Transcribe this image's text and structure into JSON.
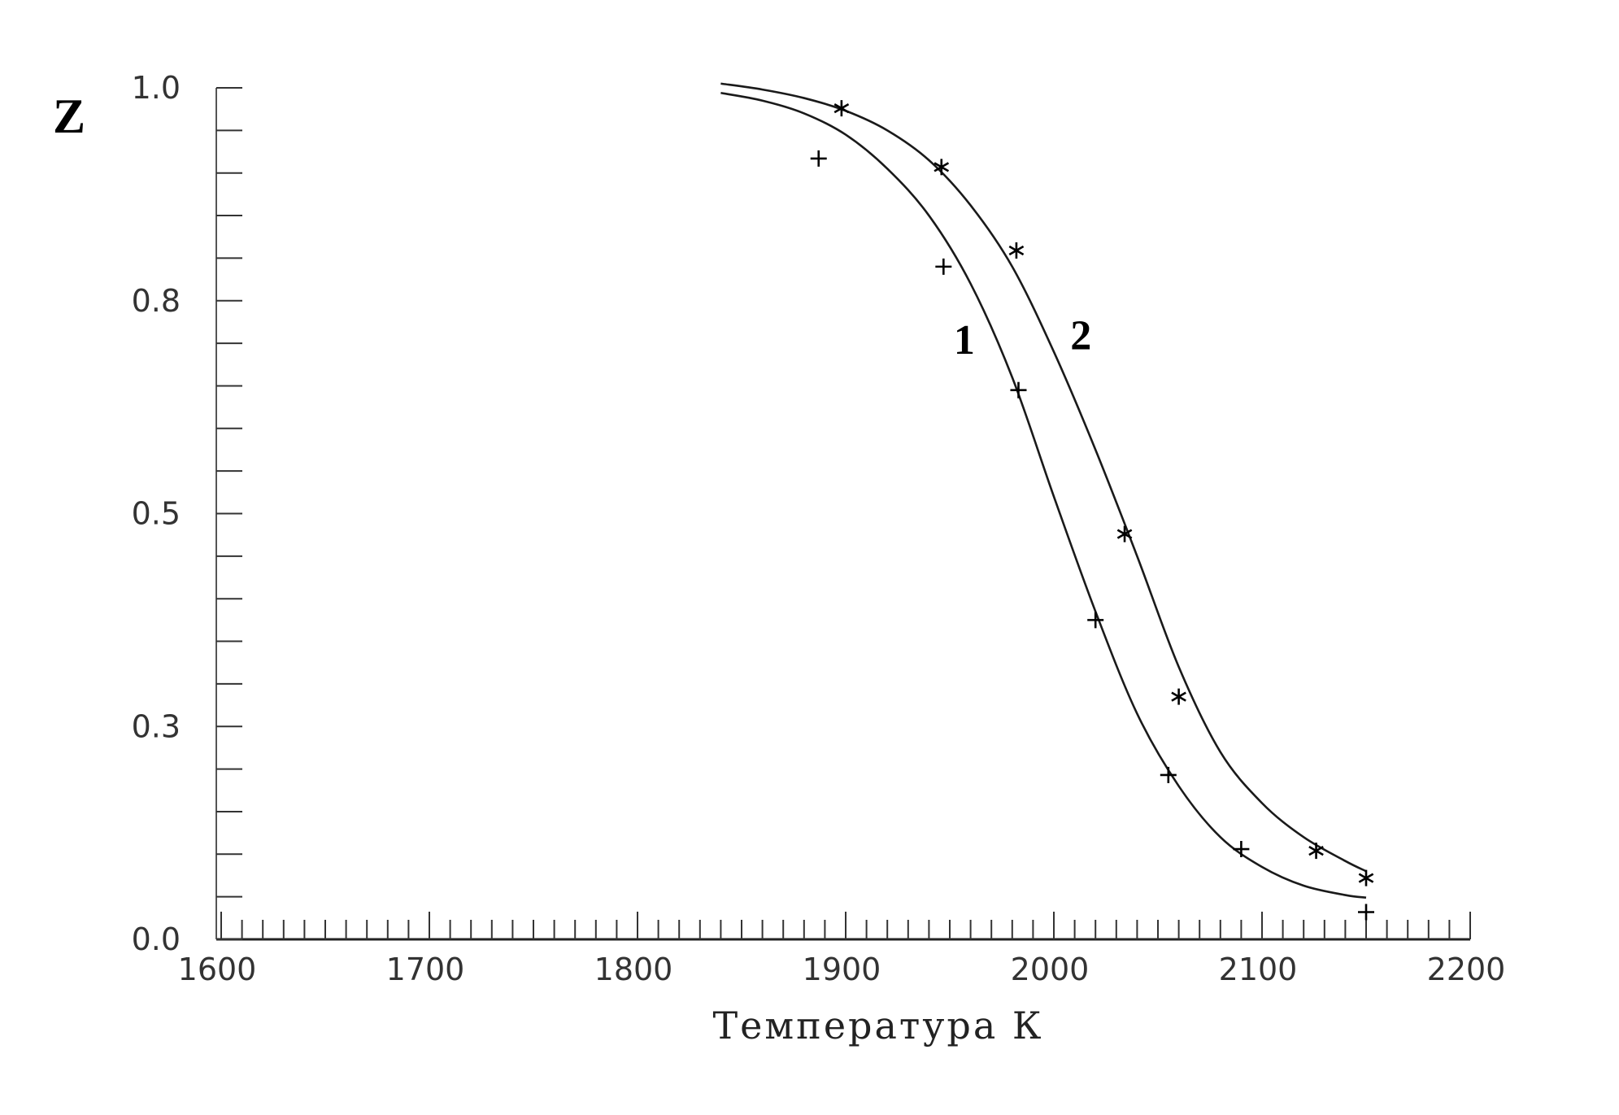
{
  "chart_data": {
    "type": "scatter",
    "title": "",
    "xlabel": "Температура К",
    "ylabel": "Z",
    "xlim": [
      1600,
      2200
    ],
    "ylim": [
      0.0,
      1.0
    ],
    "x_ticks": [
      1600,
      1700,
      1800,
      1900,
      2000,
      2100,
      2200
    ],
    "x_tick_labels": [
      "1600",
      "1700",
      "1800",
      "1900",
      "2000",
      "2100",
      "2200"
    ],
    "y_ticks": [
      0.0,
      0.25,
      0.5,
      0.75,
      1.0
    ],
    "y_tick_labels": [
      "0.0",
      "0.3",
      "0.5",
      "0.8",
      "1.0"
    ],
    "grid": false,
    "series": [
      {
        "name": "1",
        "marker": "plus",
        "points": [
          {
            "x": 1887,
            "y": 0.917
          },
          {
            "x": 1947,
            "y": 0.79
          },
          {
            "x": 1983,
            "y": 0.645
          },
          {
            "x": 2020,
            "y": 0.375
          },
          {
            "x": 2055,
            "y": 0.193
          },
          {
            "x": 2090,
            "y": 0.106
          },
          {
            "x": 2150,
            "y": 0.032
          }
        ],
        "fit_curve": {
          "x": [
            1840,
            1860,
            1880,
            1900,
            1920,
            1940,
            1960,
            1980,
            2000,
            2020,
            2040,
            2060,
            2080,
            2100,
            2120,
            2140,
            2150
          ],
          "y": [
            0.994,
            0.985,
            0.97,
            0.945,
            0.905,
            0.85,
            0.77,
            0.66,
            0.52,
            0.385,
            0.265,
            0.18,
            0.12,
            0.085,
            0.063,
            0.052,
            0.049
          ]
        }
      },
      {
        "name": "2",
        "marker": "asterisk",
        "points": [
          {
            "x": 1898,
            "y": 0.976
          },
          {
            "x": 1946,
            "y": 0.907
          },
          {
            "x": 1982,
            "y": 0.809
          },
          {
            "x": 2034,
            "y": 0.476
          },
          {
            "x": 2060,
            "y": 0.285
          },
          {
            "x": 2126,
            "y": 0.104
          },
          {
            "x": 2150,
            "y": 0.072
          }
        ],
        "fit_curve": {
          "x": [
            1840,
            1860,
            1880,
            1900,
            1920,
            1940,
            1960,
            1980,
            2000,
            2020,
            2040,
            2060,
            2080,
            2100,
            2120,
            2140,
            2150
          ],
          "y": [
            1.005,
            0.998,
            0.988,
            0.973,
            0.95,
            0.915,
            0.862,
            0.79,
            0.69,
            0.575,
            0.45,
            0.32,
            0.22,
            0.16,
            0.12,
            0.092,
            0.08
          ]
        }
      }
    ],
    "annotations": [
      {
        "text": "1",
        "x": 1957,
        "y": 0.705
      },
      {
        "text": "2",
        "x": 2013,
        "y": 0.71
      }
    ]
  }
}
